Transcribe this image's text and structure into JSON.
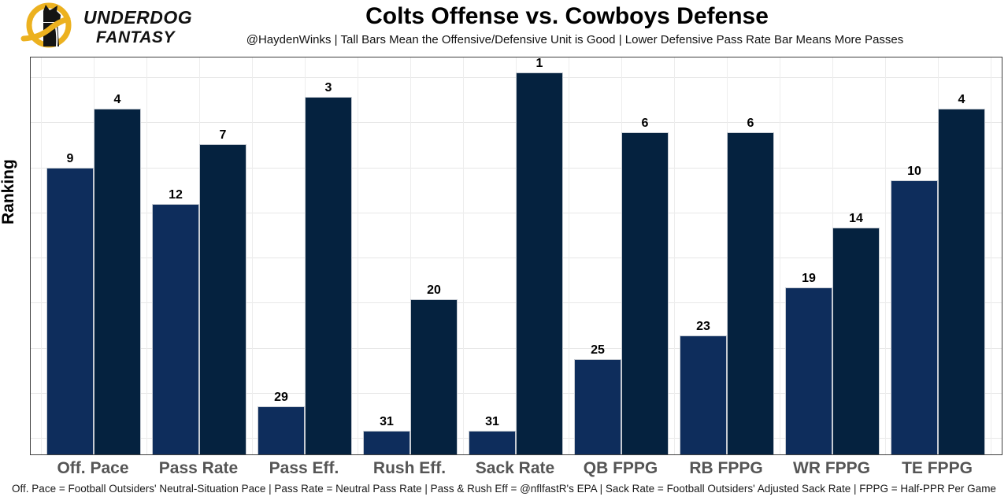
{
  "header": {
    "brand_line1": "UNDERDOG",
    "brand_line2": "FANTASY",
    "title": "Colts Offense vs. Cowboys Defense",
    "subtitle": "@HaydenWinks | Tall Bars Mean the Offensive/Defensive Unit is Good | Lower Defensive Pass Rate Bar Means More Passes"
  },
  "chart_data": {
    "type": "bar",
    "title": "Colts Offense vs. Cowboys Defense",
    "ylabel": "Ranking",
    "xlabel": "",
    "categories": [
      "Off. Pace",
      "Pass Rate",
      "Pass Eff.",
      "Rush Eff.",
      "Sack Rate",
      "QB FPPG",
      "RB FPPG",
      "WR FPPG",
      "TE FPPG"
    ],
    "series": [
      {
        "name": "Colts Offense",
        "color": "#0e2d5c",
        "values": [
          9,
          12,
          29,
          31,
          31,
          25,
          23,
          19,
          10
        ]
      },
      {
        "name": "Cowboys Defense",
        "color": "#05223f",
        "values": [
          4,
          7,
          3,
          20,
          1,
          6,
          6,
          14,
          4
        ]
      }
    ],
    "value_meaning": "NFL ranking, 1 = best; taller bar = better rank (height proportional to 33 minus rank)",
    "ylim": [
      0,
      33.4
    ],
    "grid": true,
    "legend_position": "none",
    "value_labels_shown": true
  },
  "footer": {
    "note": "Off. Pace = Football Outsiders' Neutral-Situation Pace | Pass Rate = Neutral Pass Rate | Pass & Rush Eff = @nflfastR's EPA | Sack Rate = Football Outsiders' Adjusted Sack Rate | FPPG = Half-PPR Per Game"
  },
  "brand_colors": {
    "logo_gold": "#ecb11f",
    "logo_black": "#141414"
  }
}
